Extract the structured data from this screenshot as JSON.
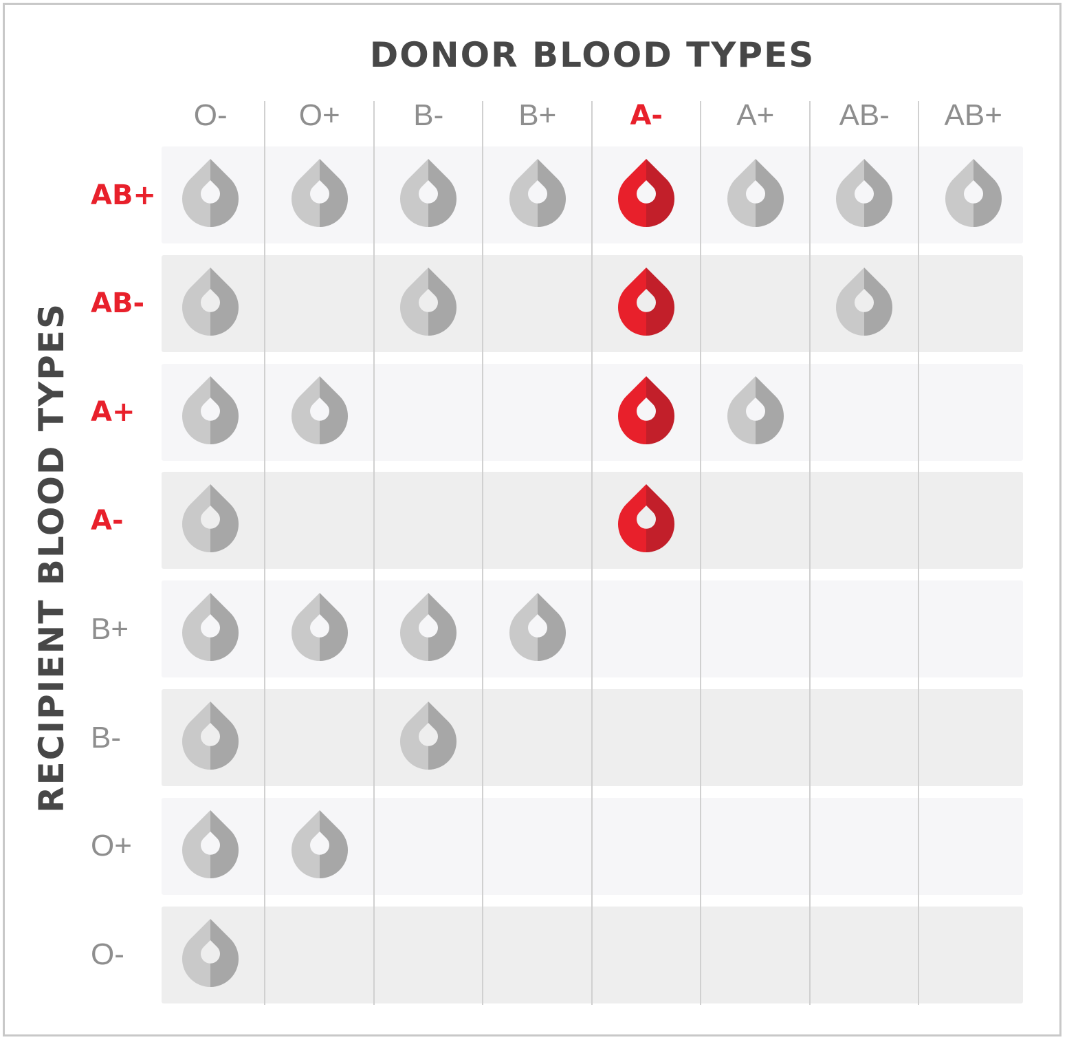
{
  "title_donor": "DONOR BLOOD TYPES",
  "title_recipient": "RECIPIENT BLOOD TYPES",
  "donor_types": [
    "O-",
    "O+",
    "B-",
    "B+",
    "A-",
    "A+",
    "AB-",
    "AB+"
  ],
  "recipient_types": [
    "AB+",
    "AB-",
    "A+",
    "A-",
    "B+",
    "B-",
    "O+",
    "O-"
  ],
  "highlight_donor": "A-",
  "highlight_recipients": [
    "AB+",
    "AB-",
    "A+",
    "A-"
  ],
  "compatibility": {
    "AB+": [
      "O-",
      "O+",
      "B-",
      "B+",
      "A-",
      "A+",
      "AB-",
      "AB+"
    ],
    "AB-": [
      "O-",
      "B-",
      "A-",
      "AB-"
    ],
    "A+": [
      "O-",
      "O+",
      "A-",
      "A+"
    ],
    "A-": [
      "O-",
      "A-"
    ],
    "B+": [
      "O-",
      "O+",
      "B-",
      "B+"
    ],
    "B-": [
      "O-",
      "B-"
    ],
    "O+": [
      "O-",
      "O+"
    ],
    "O-": [
      "O-"
    ]
  },
  "colors": {
    "highlight": "#e8202b",
    "highlight_dark": "#c21f2a",
    "drop_light": "#c9c9c9",
    "drop_dark": "#a7a7a7",
    "label": "#8e8e8e",
    "title": "#474747"
  },
  "icons": {
    "compatible": "blood-drop-icon"
  }
}
